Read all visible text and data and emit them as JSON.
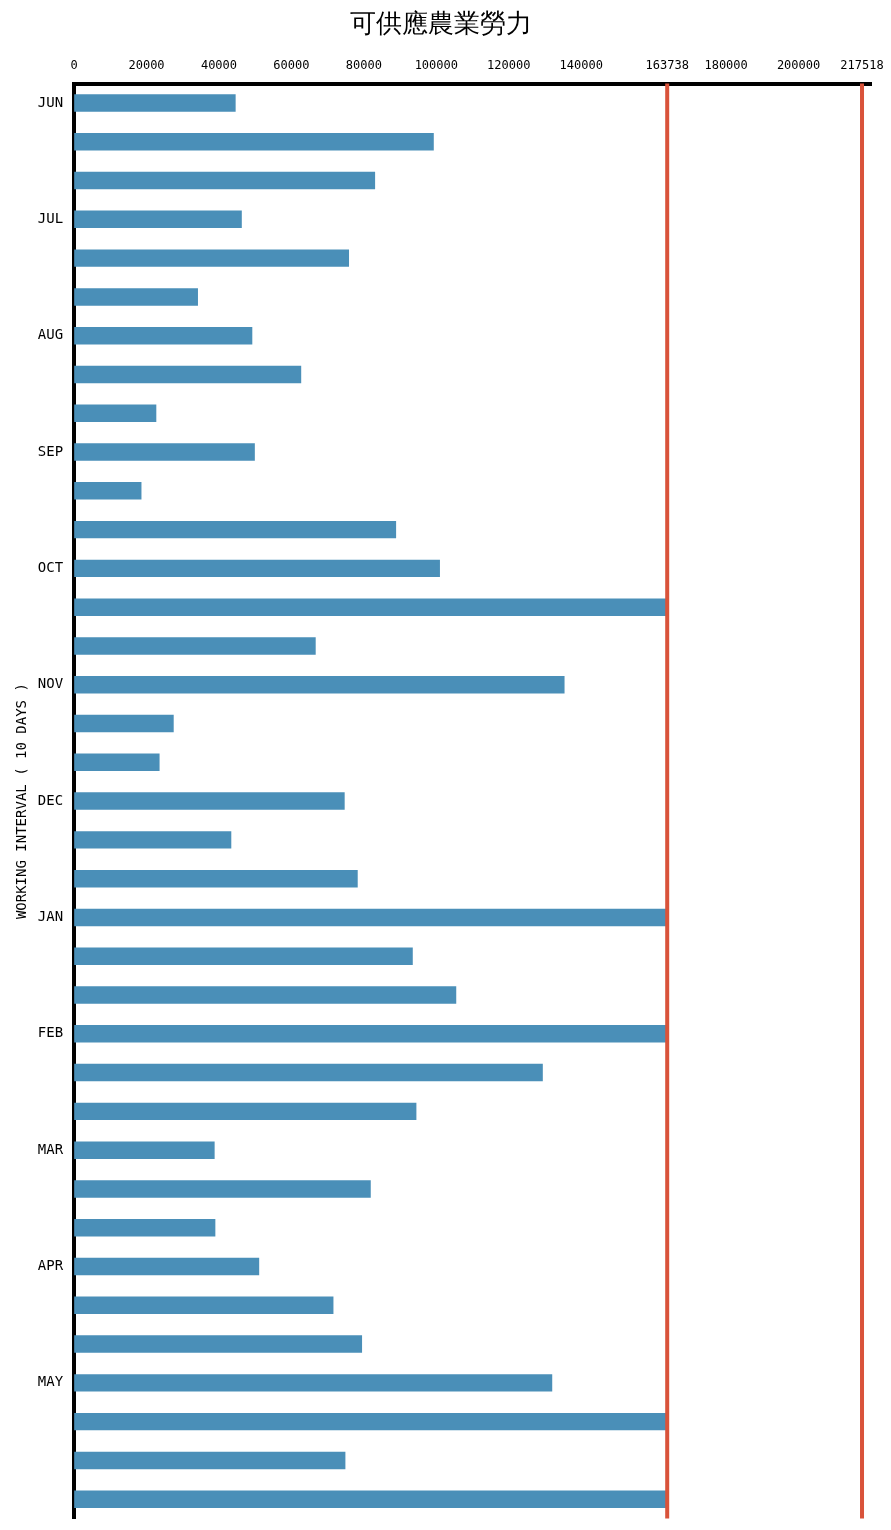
{
  "chart_data": {
    "type": "bar",
    "orientation": "horizontal",
    "title": "可供應農業勞力",
    "ylabel": "WORKING INTERVAL ( 10 DAYS )",
    "categories": [
      "JUN",
      null,
      null,
      "JUL",
      null,
      null,
      "AUG",
      null,
      null,
      "SEP",
      null,
      null,
      "OCT",
      null,
      null,
      "NOV",
      null,
      null,
      "DEC",
      null,
      null,
      "JAN",
      null,
      null,
      "FEB",
      null,
      null,
      "MAR",
      null,
      null,
      "APR",
      null,
      null,
      "MAY",
      null,
      null,
      null
    ],
    "values": [
      44600,
      99300,
      83100,
      46300,
      75900,
      34200,
      49200,
      62700,
      22700,
      49900,
      18600,
      88900,
      101000,
      163738,
      66700,
      135400,
      27500,
      23600,
      74700,
      43400,
      78300,
      163738,
      93500,
      105500,
      163738,
      129400,
      94500,
      38800,
      81900,
      39000,
      51100,
      71600,
      79500,
      132000,
      163738,
      74900,
      163738
    ],
    "color": "#4a8fb8",
    "xlim": [
      0,
      220000
    ],
    "xticks": [
      0,
      20000,
      40000,
      60000,
      80000,
      100000,
      120000,
      140000,
      163738,
      180000,
      200000,
      217518
    ],
    "ref_lines": [
      {
        "axis": "x",
        "value": 163738,
        "color": "#d9533a"
      },
      {
        "axis": "x",
        "value": 217518,
        "color": "#d9533a"
      }
    ],
    "grid": false
  }
}
